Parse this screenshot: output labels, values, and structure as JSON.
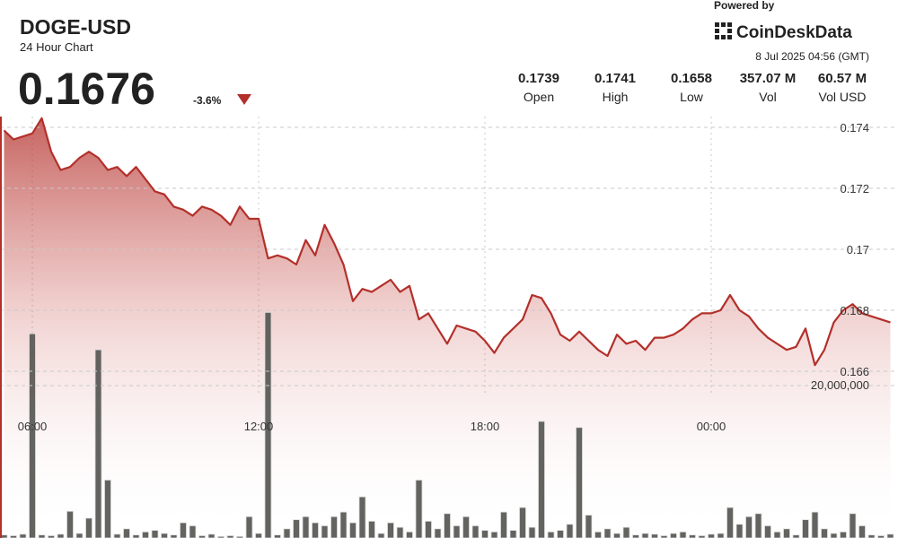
{
  "header": {
    "title": "DOGE-USD",
    "subtitle": "24 Hour Chart",
    "price": "0.1676",
    "change": "-3.6%",
    "powered_by": "Powered by",
    "brand": "CoinDeskData",
    "timestamp": "8 Jul 2025 04:56 (GMT)",
    "stats": [
      {
        "value": "0.1739",
        "label": "Open"
      },
      {
        "value": "0.1741",
        "label": "High"
      },
      {
        "value": "0.1658",
        "label": "Low"
      },
      {
        "value": "357.07 M",
        "label": "Vol"
      },
      {
        "value": "60.57 M",
        "label": "Vol USD"
      }
    ]
  },
  "chart_data": {
    "type": "line",
    "categories": [
      null,
      null,
      null,
      "06:00",
      null,
      null,
      null,
      null,
      null,
      null,
      null,
      null,
      null,
      null,
      null,
      null,
      null,
      null,
      null,
      null,
      null,
      null,
      null,
      null,
      null,
      null,
      null,
      "12:00",
      null,
      null,
      null,
      null,
      null,
      null,
      null,
      null,
      null,
      null,
      null,
      null,
      null,
      null,
      null,
      null,
      null,
      null,
      null,
      null,
      null,
      null,
      null,
      "18:00",
      null,
      null,
      null,
      null,
      null,
      null,
      null,
      null,
      null,
      null,
      null,
      null,
      null,
      null,
      null,
      null,
      null,
      null,
      null,
      null,
      null,
      null,
      null,
      "00:00",
      null,
      null,
      null,
      null,
      null,
      null,
      null,
      null,
      null,
      null,
      null,
      null,
      null,
      null,
      null,
      null,
      null,
      null,
      null
    ],
    "series": [
      {
        "type": "line",
        "color": "#b3302b",
        "values": [
          0.1739,
          0.1736,
          0.1737,
          0.1738,
          0.1743,
          0.1732,
          0.1726,
          0.1727,
          0.173,
          0.1732,
          0.173,
          0.1726,
          0.1727,
          0.1724,
          0.1727,
          0.1723,
          0.1719,
          0.1718,
          0.1714,
          0.1713,
          0.1711,
          0.1714,
          0.1713,
          0.1711,
          0.1708,
          0.1714,
          0.171,
          0.171,
          0.1697,
          0.1698,
          0.1697,
          0.1695,
          0.1703,
          0.1698,
          0.1708,
          0.1702,
          0.1695,
          0.1683,
          0.1687,
          0.1686,
          0.1688,
          0.169,
          0.1686,
          0.1688,
          0.1677,
          0.1679,
          0.1674,
          0.1669,
          0.1675,
          0.1674,
          0.1673,
          0.167,
          0.1666,
          0.1671,
          0.1674,
          0.1677,
          0.1685,
          0.1684,
          0.1679,
          0.1672,
          0.167,
          0.1673,
          0.167,
          0.1667,
          0.1665,
          0.1672,
          0.1669,
          0.167,
          0.1667,
          0.1671,
          0.1671,
          0.1672,
          0.1674,
          0.1677,
          0.1679,
          0.1679,
          0.168,
          0.1685,
          0.168,
          0.1678,
          0.1674,
          0.1671,
          0.1669,
          0.1667,
          0.1668,
          0.1674,
          0.1662,
          0.1667,
          0.1676,
          0.168,
          0.1682,
          0.1679,
          0.1678,
          0.1677,
          0.1676
        ]
      },
      {
        "type": "bar",
        "axis": "y2",
        "color": "#5b5b57",
        "values": [
          400000,
          300000,
          500000,
          26800000,
          400000,
          300000,
          500000,
          3500000,
          600000,
          2600000,
          24700000,
          7600000,
          500000,
          1200000,
          400000,
          800000,
          1000000,
          600000,
          400000,
          2000000,
          1600000,
          300000,
          500000,
          200000,
          300000,
          200000,
          2800000,
          600000,
          29600000,
          400000,
          1200000,
          2400000,
          2800000,
          2000000,
          1600000,
          2800000,
          3400000,
          2000000,
          5400000,
          2200000,
          600000,
          2000000,
          1400000,
          800000,
          7600000,
          2200000,
          1200000,
          3200000,
          1600000,
          2800000,
          1600000,
          1000000,
          800000,
          3400000,
          1000000,
          4000000,
          1400000,
          15300000,
          800000,
          1000000,
          1800000,
          14500000,
          3000000,
          800000,
          1200000,
          600000,
          1400000,
          400000,
          600000,
          500000,
          300000,
          600000,
          800000,
          400000,
          300000,
          500000,
          600000,
          4000000,
          1800000,
          2800000,
          3200000,
          1600000,
          800000,
          1200000,
          400000,
          2400000,
          3400000,
          1200000,
          600000,
          800000,
          3200000,
          1600000,
          400000,
          300000,
          500000
        ]
      }
    ],
    "ylim": [
      0.1655,
      0.1745
    ],
    "yticks": [
      0.174,
      0.172,
      0.17,
      0.168,
      0.166
    ],
    "y2lim": [
      0,
      35000000
    ],
    "y2ticks": [
      {
        "value": 20000000,
        "label": "20,000,000"
      }
    ],
    "grid": true
  }
}
